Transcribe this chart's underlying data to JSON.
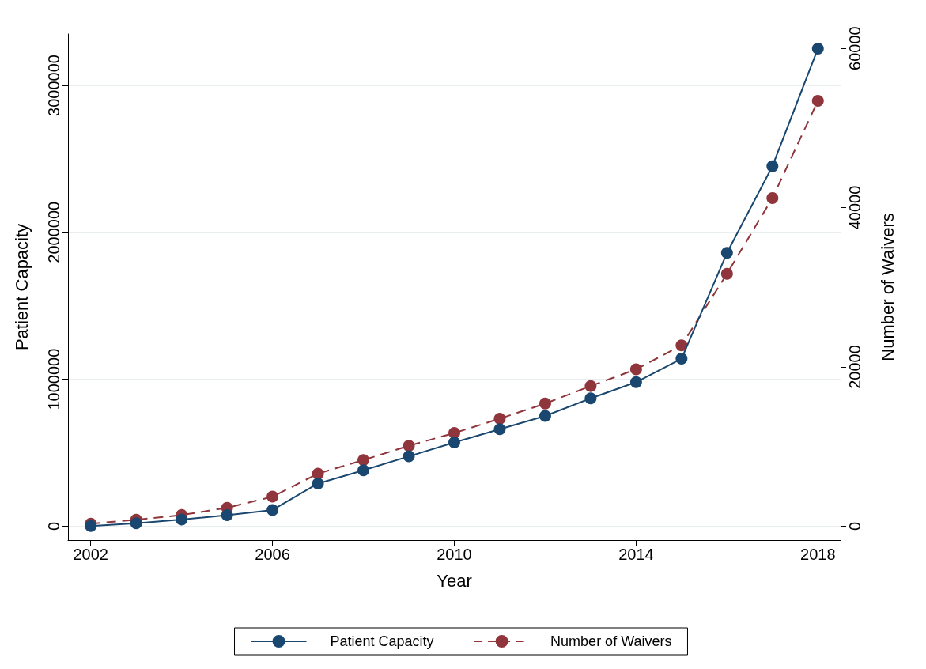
{
  "chart_data": {
    "type": "line",
    "xlabel": "Year",
    "ylabel": "Patient Capacity",
    "y2label": "Number of Waivers",
    "x": [
      2002,
      2003,
      2004,
      2005,
      2006,
      2007,
      2008,
      2009,
      2010,
      2011,
      2012,
      2013,
      2014,
      2015,
      2016,
      2017,
      2018
    ],
    "series": [
      {
        "name": "Patient Capacity",
        "color": "#1a476f",
        "line_style": "solid",
        "values": [
          0,
          20000,
          45000,
          75000,
          110000,
          290000,
          380000,
          475000,
          570000,
          660000,
          750000,
          870000,
          980000,
          1140000,
          1860000,
          2450000,
          3250000
        ]
      },
      {
        "name": "Number of Waivers",
        "color": "#90353b",
        "line_style": "dashed",
        "axis": "y2",
        "values": [
          300,
          800,
          1400,
          2300,
          3700,
          6600,
          8300,
          10100,
          11700,
          13500,
          15400,
          17600,
          19700,
          22700,
          31700,
          41200,
          53400
        ]
      }
    ],
    "xlim": [
      2001.5,
      2018.5
    ],
    "xticks": [
      2002,
      2006,
      2010,
      2014,
      2018
    ],
    "ylim": [
      -95000,
      3350000
    ],
    "yticks": [
      0,
      1000000,
      2000000,
      3000000
    ],
    "y2lim": [
      -1750,
      61800
    ],
    "y2ticks": [
      0,
      20000,
      40000,
      60000
    ],
    "grid": "y",
    "legend": "bottom",
    "marker": "circle"
  }
}
